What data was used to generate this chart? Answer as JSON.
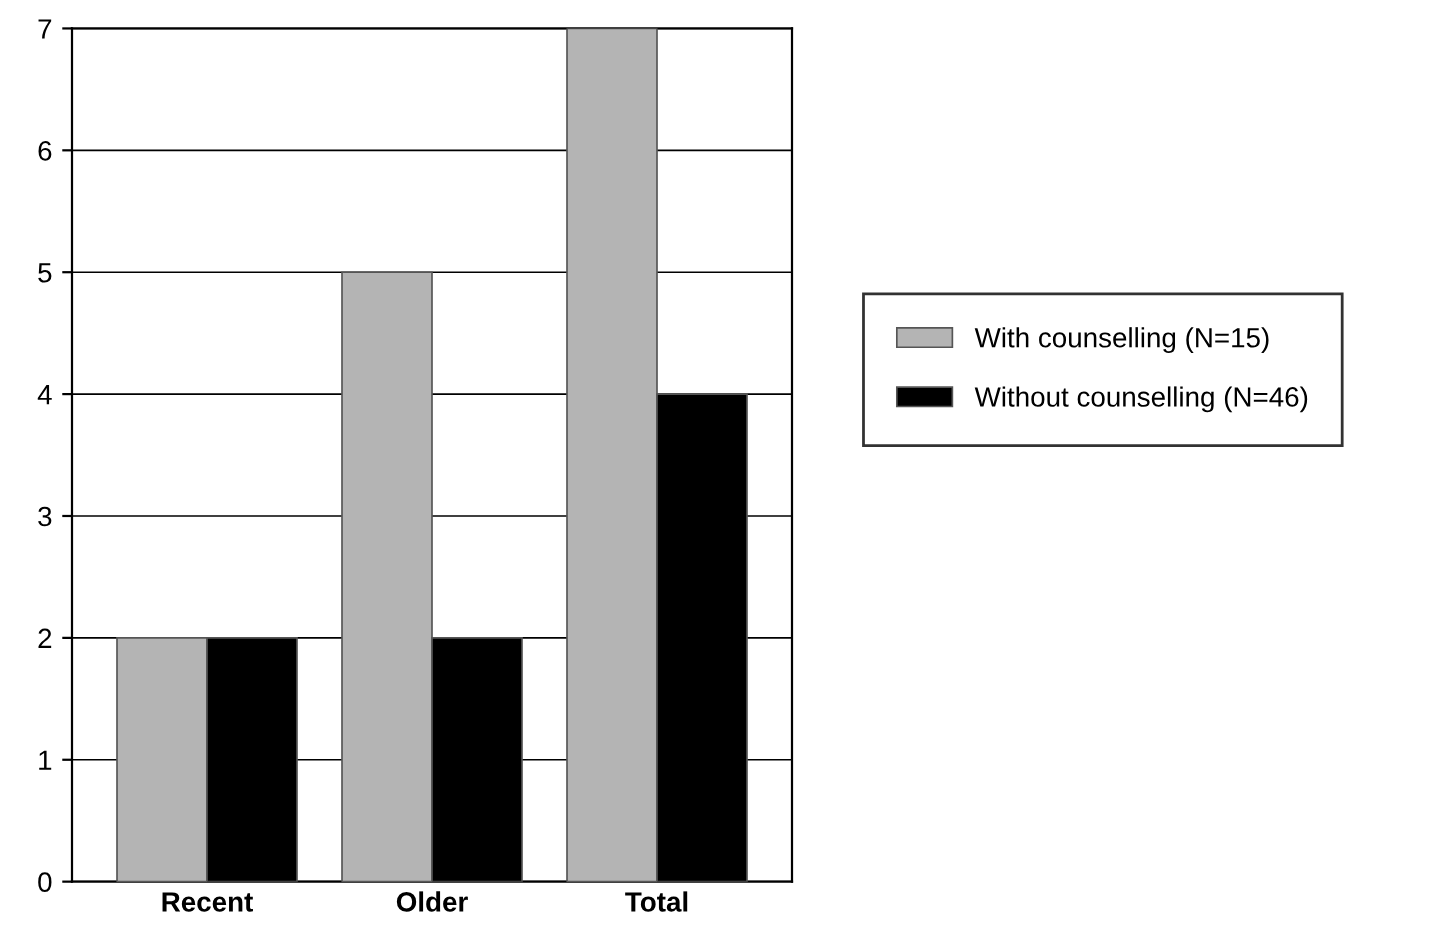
{
  "chart_data": {
    "type": "bar",
    "categories": [
      "Recent",
      "Older",
      "Total"
    ],
    "series": [
      {
        "name": "With counselling (N=15)",
        "color": "#b4b4b4",
        "values": [
          2,
          5,
          7
        ]
      },
      {
        "name": "Without counselling (N=46)",
        "color": "#000000",
        "values": [
          2,
          2,
          4
        ]
      }
    ],
    "ylim": [
      0,
      7
    ],
    "yticks": [
      0,
      1,
      2,
      3,
      4,
      5,
      6,
      7
    ],
    "grid": "y",
    "legend": "right"
  }
}
